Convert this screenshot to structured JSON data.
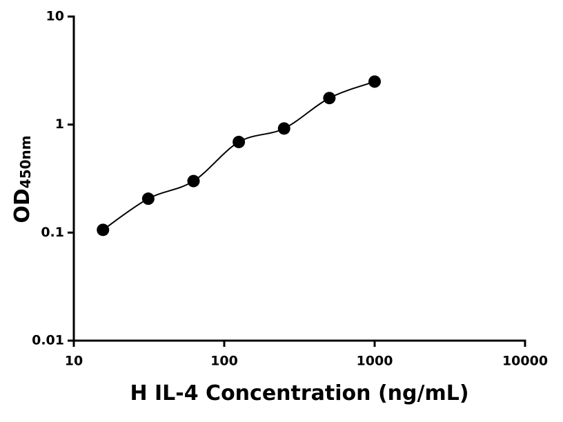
{
  "chart_data": {
    "type": "scatter",
    "x_label": "H IL-4 Concentration (ng/mL)",
    "y_label": "OD",
    "y_label_subscript": "450nm",
    "x": [
      15.625,
      31.25,
      62.5,
      125,
      250,
      500,
      1000
    ],
    "values": [
      0.106,
      0.206,
      0.3,
      0.69,
      0.92,
      1.76,
      2.5
    ],
    "color": "#000000",
    "log_x": true,
    "log_y": true,
    "fit_curve": true,
    "xlim": [
      10,
      10000
    ],
    "xticks": [
      10,
      100,
      1000,
      10000
    ],
    "ylim": [
      0.01,
      10
    ],
    "yticks": [
      0.01,
      0.1,
      1,
      10
    ]
  }
}
